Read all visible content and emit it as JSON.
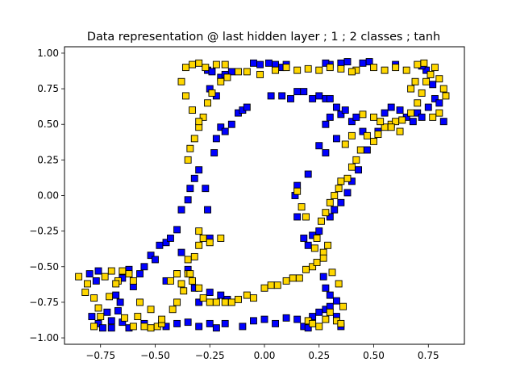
{
  "chart_data": {
    "type": "scatter",
    "title": "Data representation @ last hidden layer ; 1 ; 2 classes ; tanh",
    "xlabel": "",
    "ylabel": "",
    "xlim": [
      -0.915,
      0.915
    ],
    "ylim": [
      -1.045,
      1.045
    ],
    "xticks": [
      -0.75,
      -0.5,
      -0.25,
      0.0,
      0.25,
      0.5,
      0.75
    ],
    "xtick_labels": [
      "−0.75",
      "−0.50",
      "−0.25",
      "0.00",
      "0.25",
      "0.50",
      "0.75"
    ],
    "yticks": [
      -1.0,
      -0.75,
      -0.5,
      -0.25,
      0.0,
      0.25,
      0.5,
      0.75,
      1.0
    ],
    "ytick_labels": [
      "−1.00",
      "−0.75",
      "−0.50",
      "−0.25",
      "0.00",
      "0.25",
      "0.50",
      "0.75",
      "1.00"
    ],
    "grid": false,
    "legend": null,
    "marker": "square",
    "series": [
      {
        "color": "#0000ff",
        "points": [
          [
            -0.8,
            -0.55
          ],
          [
            -0.77,
            -0.6
          ],
          [
            -0.79,
            -0.85
          ],
          [
            -0.76,
            -0.9
          ],
          [
            -0.74,
            -0.93
          ],
          [
            -0.7,
            -0.93
          ],
          [
            -0.67,
            -0.81
          ],
          [
            -0.65,
            -0.89
          ],
          [
            -0.62,
            -0.93
          ],
          [
            -0.6,
            -0.64
          ],
          [
            -0.57,
            -0.55
          ],
          [
            -0.55,
            -0.5
          ],
          [
            -0.52,
            -0.42
          ],
          [
            -0.5,
            -0.45
          ],
          [
            -0.48,
            -0.35
          ],
          [
            -0.45,
            -0.33
          ],
          [
            -0.43,
            -0.3
          ],
          [
            -0.4,
            -0.24
          ],
          [
            -0.38,
            -0.1
          ],
          [
            -0.35,
            -0.03
          ],
          [
            -0.34,
            0.05
          ],
          [
            -0.32,
            0.12
          ],
          [
            -0.3,
            0.18
          ],
          [
            -0.27,
            0.05
          ],
          [
            -0.26,
            -0.1
          ],
          [
            -0.25,
            -0.3
          ],
          [
            -0.23,
            0.3
          ],
          [
            -0.22,
            0.4
          ],
          [
            -0.2,
            0.48
          ],
          [
            -0.18,
            0.45
          ],
          [
            -0.15,
            0.5
          ],
          [
            -0.12,
            0.58
          ],
          [
            -0.1,
            0.6
          ],
          [
            -0.08,
            0.62
          ],
          [
            -0.25,
            0.75
          ],
          [
            -0.22,
            0.7
          ],
          [
            -0.2,
            0.83
          ],
          [
            -0.18,
            0.85
          ],
          [
            -0.15,
            0.87
          ],
          [
            -0.26,
            0.88
          ],
          [
            -0.24,
            0.87
          ],
          [
            -0.05,
            0.93
          ],
          [
            -0.02,
            0.92
          ],
          [
            0.02,
            0.93
          ],
          [
            0.05,
            0.92
          ],
          [
            0.08,
            0.9
          ],
          [
            0.1,
            0.92
          ],
          [
            0.03,
            0.7
          ],
          [
            0.08,
            0.7
          ],
          [
            0.12,
            0.68
          ],
          [
            0.15,
            0.73
          ],
          [
            0.18,
            0.73
          ],
          [
            0.22,
            0.68
          ],
          [
            0.25,
            0.7
          ],
          [
            0.28,
            0.68
          ],
          [
            0.3,
            0.68
          ],
          [
            0.33,
            0.62
          ],
          [
            0.35,
            0.57
          ],
          [
            0.37,
            0.6
          ],
          [
            0.3,
            0.55
          ],
          [
            0.28,
            0.5
          ],
          [
            0.33,
            0.4
          ],
          [
            0.4,
            0.52
          ],
          [
            0.42,
            0.55
          ],
          [
            0.45,
            0.45
          ],
          [
            0.47,
            0.32
          ],
          [
            0.43,
            0.18
          ],
          [
            0.4,
            0.1
          ],
          [
            0.38,
            0.02
          ],
          [
            0.35,
            -0.05
          ],
          [
            0.32,
            -0.1
          ],
          [
            0.3,
            -0.15
          ],
          [
            0.25,
            -0.25
          ],
          [
            0.22,
            -0.28
          ],
          [
            0.2,
            -0.35
          ],
          [
            0.18,
            -0.3
          ],
          [
            0.15,
            -0.15
          ],
          [
            0.14,
            -0.0
          ],
          [
            0.15,
            0.07
          ],
          [
            0.2,
            0.15
          ],
          [
            0.25,
            0.35
          ],
          [
            0.28,
            0.3
          ],
          [
            0.35,
            0.93
          ],
          [
            0.38,
            0.94
          ],
          [
            0.48,
            0.94
          ],
          [
            0.45,
            0.93
          ],
          [
            0.3,
            0.92
          ],
          [
            0.28,
            0.93
          ],
          [
            0.55,
            0.58
          ],
          [
            0.58,
            0.62
          ],
          [
            0.62,
            0.6
          ],
          [
            0.65,
            0.55
          ],
          [
            0.68,
            0.52
          ],
          [
            0.7,
            0.58
          ],
          [
            0.72,
            0.55
          ],
          [
            0.75,
            0.62
          ],
          [
            0.78,
            0.68
          ],
          [
            0.8,
            0.65
          ],
          [
            0.82,
            0.52
          ],
          [
            0.77,
            0.78
          ],
          [
            0.74,
            0.88
          ],
          [
            0.72,
            0.91
          ],
          [
            0.6,
            0.92
          ],
          [
            0.52,
            0.45
          ],
          [
            -0.7,
            -0.88
          ],
          [
            -0.72,
            -0.82
          ],
          [
            -0.55,
            -0.9
          ],
          [
            -0.45,
            -0.92
          ],
          [
            -0.4,
            -0.9
          ],
          [
            -0.35,
            -0.89
          ],
          [
            -0.3,
            -0.92
          ],
          [
            -0.25,
            -0.9
          ],
          [
            -0.22,
            -0.93
          ],
          [
            -0.18,
            -0.9
          ],
          [
            -0.1,
            -0.92
          ],
          [
            -0.05,
            -0.88
          ],
          [
            0.0,
            -0.87
          ],
          [
            0.05,
            -0.9
          ],
          [
            0.1,
            -0.86
          ],
          [
            0.15,
            -0.87
          ],
          [
            0.18,
            -0.92
          ],
          [
            0.2,
            -0.93
          ],
          [
            0.22,
            -0.85
          ],
          [
            0.25,
            -0.82
          ],
          [
            0.28,
            -0.8
          ],
          [
            0.3,
            -0.78
          ],
          [
            0.33,
            -0.85
          ],
          [
            0.35,
            -0.92
          ],
          [
            0.33,
            -0.74
          ],
          [
            0.3,
            -0.7
          ],
          [
            0.28,
            -0.65
          ],
          [
            0.27,
            -0.57
          ],
          [
            -0.2,
            -0.7
          ],
          [
            -0.17,
            -0.73
          ],
          [
            -0.25,
            -0.68
          ],
          [
            -0.3,
            -0.75
          ],
          [
            -0.32,
            -0.65
          ],
          [
            -0.35,
            -0.52
          ],
          [
            -0.38,
            -0.4
          ],
          [
            -0.4,
            -0.55
          ],
          [
            -0.45,
            -0.6
          ],
          [
            -0.62,
            -0.52
          ],
          [
            -0.65,
            -0.58
          ],
          [
            -0.68,
            -0.7
          ],
          [
            -0.66,
            -0.75
          ],
          [
            -0.76,
            -0.53
          ]
        ]
      },
      {
        "color": "#ffd700",
        "points": [
          [
            -0.85,
            -0.57
          ],
          [
            -0.82,
            -0.68
          ],
          [
            -0.78,
            -0.72
          ],
          [
            -0.76,
            -0.79
          ],
          [
            -0.73,
            -0.57
          ],
          [
            -0.7,
            -0.53
          ],
          [
            -0.67,
            -0.6
          ],
          [
            -0.64,
            -0.86
          ],
          [
            -0.6,
            -0.92
          ],
          [
            -0.58,
            -0.85
          ],
          [
            -0.55,
            -0.92
          ],
          [
            -0.52,
            -0.93
          ],
          [
            -0.49,
            -0.92
          ],
          [
            -0.47,
            -0.9
          ],
          [
            -0.43,
            -0.6
          ],
          [
            -0.38,
            -0.62
          ],
          [
            -0.35,
            -0.55
          ],
          [
            -0.33,
            -0.6
          ],
          [
            -0.3,
            -0.65
          ],
          [
            -0.28,
            -0.72
          ],
          [
            -0.25,
            -0.75
          ],
          [
            -0.22,
            -0.75
          ],
          [
            -0.18,
            -0.75
          ],
          [
            -0.15,
            -0.75
          ],
          [
            -0.12,
            -0.73
          ],
          [
            -0.08,
            -0.7
          ],
          [
            -0.05,
            -0.72
          ],
          [
            0.0,
            -0.65
          ],
          [
            0.03,
            -0.63
          ],
          [
            0.06,
            -0.63
          ],
          [
            0.1,
            -0.6
          ],
          [
            0.13,
            -0.58
          ],
          [
            0.16,
            -0.58
          ],
          [
            0.19,
            -0.52
          ],
          [
            0.22,
            -0.5
          ],
          [
            0.24,
            -0.47
          ],
          [
            0.27,
            -0.4
          ],
          [
            0.29,
            -0.35
          ],
          [
            0.24,
            -0.3
          ],
          [
            0.26,
            -0.18
          ],
          [
            0.28,
            -0.12
          ],
          [
            0.3,
            -0.05
          ],
          [
            0.32,
            0.0
          ],
          [
            0.34,
            0.05
          ],
          [
            0.35,
            0.1
          ],
          [
            0.38,
            0.12
          ],
          [
            0.4,
            0.2
          ],
          [
            0.42,
            0.25
          ],
          [
            0.44,
            0.32
          ],
          [
            0.47,
            0.42
          ],
          [
            0.5,
            0.38
          ],
          [
            0.52,
            0.43
          ],
          [
            0.55,
            0.48
          ],
          [
            0.58,
            0.5
          ],
          [
            0.6,
            0.52
          ],
          [
            0.63,
            0.53
          ],
          [
            0.67,
            0.58
          ],
          [
            0.7,
            0.65
          ],
          [
            0.72,
            0.72
          ],
          [
            0.74,
            0.8
          ],
          [
            0.76,
            0.85
          ],
          [
            0.78,
            0.9
          ],
          [
            0.8,
            0.82
          ],
          [
            0.82,
            0.75
          ],
          [
            0.83,
            0.7
          ],
          [
            0.8,
            0.58
          ],
          [
            0.77,
            0.55
          ],
          [
            0.73,
            0.93
          ],
          [
            0.7,
            0.92
          ],
          [
            0.65,
            0.88
          ],
          [
            0.6,
            0.9
          ],
          [
            0.55,
            0.88
          ],
          [
            0.5,
            0.9
          ],
          [
            0.42,
            0.88
          ],
          [
            0.4,
            0.87
          ],
          [
            0.35,
            0.89
          ],
          [
            0.3,
            0.9
          ],
          [
            0.25,
            0.88
          ],
          [
            0.2,
            0.89
          ],
          [
            0.15,
            0.88
          ],
          [
            0.1,
            0.9
          ],
          [
            0.05,
            0.88
          ],
          [
            -0.02,
            0.85
          ],
          [
            -0.08,
            0.87
          ],
          [
            -0.12,
            0.87
          ],
          [
            -0.17,
            0.83
          ],
          [
            -0.2,
            0.8
          ],
          [
            -0.24,
            0.72
          ],
          [
            -0.26,
            0.65
          ],
          [
            -0.28,
            0.55
          ],
          [
            -0.3,
            0.48
          ],
          [
            -0.32,
            0.4
          ],
          [
            -0.34,
            0.33
          ],
          [
            -0.35,
            0.25
          ],
          [
            -0.36,
            0.9
          ],
          [
            -0.33,
            0.92
          ],
          [
            -0.3,
            0.93
          ],
          [
            -0.27,
            0.9
          ],
          [
            -0.22,
            0.92
          ],
          [
            -0.18,
            0.92
          ],
          [
            -0.38,
            0.8
          ],
          [
            -0.36,
            0.7
          ],
          [
            -0.33,
            0.6
          ],
          [
            -0.3,
            0.52
          ],
          [
            -0.28,
            -0.3
          ],
          [
            -0.3,
            -0.35
          ],
          [
            -0.32,
            -0.43
          ],
          [
            -0.34,
            -0.55
          ],
          [
            -0.37,
            -0.67
          ],
          [
            -0.4,
            -0.75
          ],
          [
            -0.42,
            -0.8
          ],
          [
            -0.47,
            -0.87
          ],
          [
            -0.52,
            -0.8
          ],
          [
            -0.57,
            -0.75
          ],
          [
            -0.6,
            -0.6
          ],
          [
            -0.62,
            -0.55
          ],
          [
            -0.65,
            -0.53
          ],
          [
            -0.68,
            -0.62
          ],
          [
            -0.71,
            -0.71
          ],
          [
            -0.75,
            -0.85
          ],
          [
            -0.78,
            -0.92
          ],
          [
            -0.81,
            -0.62
          ],
          [
            -0.4,
            -0.55
          ],
          [
            -0.35,
            -0.45
          ],
          [
            -0.3,
            -0.25
          ],
          [
            -0.25,
            -0.33
          ],
          [
            -0.2,
            -0.3
          ],
          [
            0.2,
            -0.88
          ],
          [
            0.22,
            -0.9
          ],
          [
            0.25,
            -0.92
          ],
          [
            0.28,
            -0.87
          ],
          [
            0.3,
            -0.82
          ],
          [
            0.33,
            -0.88
          ],
          [
            0.35,
            -0.9
          ],
          [
            0.36,
            -0.78
          ],
          [
            0.34,
            -0.62
          ],
          [
            0.31,
            -0.54
          ],
          [
            0.27,
            -0.44
          ],
          [
            0.23,
            -0.37
          ],
          [
            0.19,
            -0.15
          ],
          [
            0.17,
            -0.08
          ],
          [
            0.15,
            0.03
          ],
          [
            0.4,
            0.42
          ],
          [
            0.37,
            0.36
          ],
          [
            0.45,
            0.57
          ],
          [
            0.5,
            0.55
          ],
          [
            0.53,
            0.52
          ],
          [
            0.58,
            0.48
          ],
          [
            0.62,
            0.45
          ],
          [
            0.67,
            0.75
          ],
          [
            0.69,
            0.8
          ]
        ]
      }
    ]
  }
}
